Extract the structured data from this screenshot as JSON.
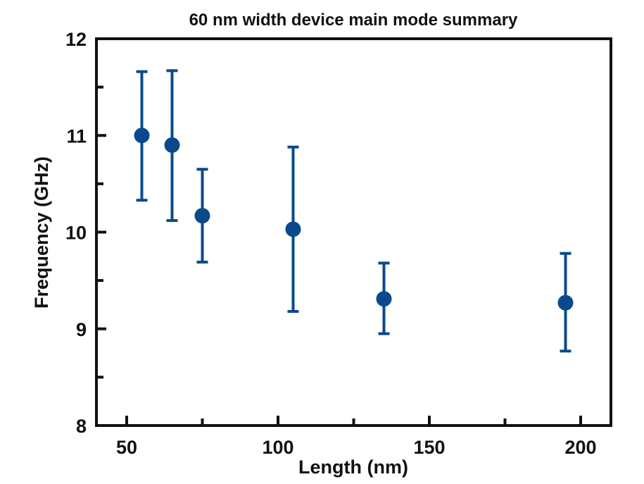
{
  "chart_data": {
    "type": "scatter",
    "title": "60 nm width device main mode summary",
    "xlabel": "Length (nm)",
    "ylabel": "Frequency (GHz)",
    "xlim": [
      40,
      210
    ],
    "ylim": [
      8,
      12
    ],
    "x_ticks": [
      50,
      100,
      150,
      200
    ],
    "x_minor_ticks": [
      75,
      125,
      175
    ],
    "y_ticks": [
      8,
      9,
      10,
      11,
      12
    ],
    "y_minor_ticks": [
      8.5,
      9.5,
      10.5,
      11.5
    ],
    "x_tick_labels": [
      "50",
      "100",
      "150",
      "200"
    ],
    "y_tick_labels": [
      "8",
      "9",
      "10",
      "11",
      "12"
    ],
    "grid": false,
    "color": "#0a4a8c",
    "points": [
      {
        "x": 55,
        "y": 11.0,
        "err_low": 10.33,
        "err_high": 11.66
      },
      {
        "x": 65,
        "y": 10.9,
        "err_low": 10.12,
        "err_high": 11.67
      },
      {
        "x": 75,
        "y": 10.17,
        "err_low": 9.69,
        "err_high": 10.65
      },
      {
        "x": 105,
        "y": 10.03,
        "err_low": 9.18,
        "err_high": 10.88
      },
      {
        "x": 135,
        "y": 9.31,
        "err_low": 8.95,
        "err_high": 9.68
      },
      {
        "x": 195,
        "y": 9.27,
        "err_low": 8.77,
        "err_high": 9.78
      }
    ]
  }
}
